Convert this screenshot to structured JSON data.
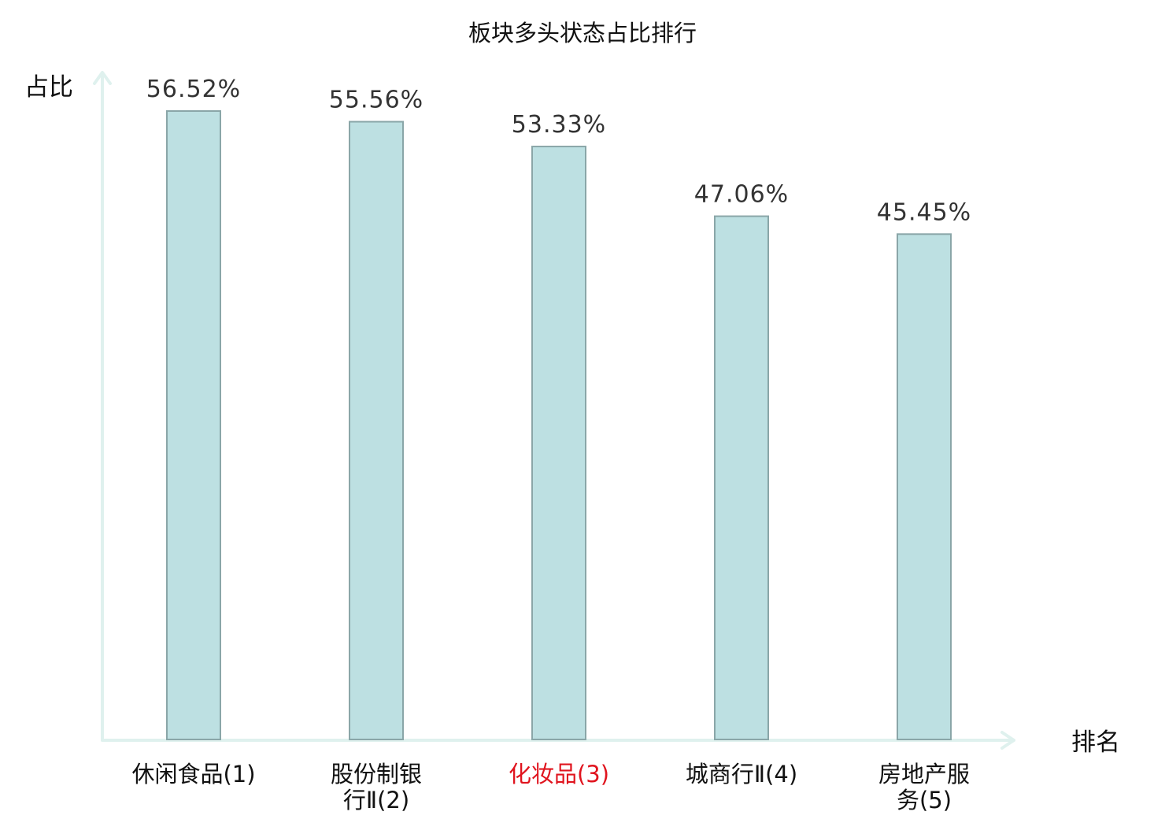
{
  "chart_data": {
    "type": "bar",
    "title": "板块多头状态占比排行",
    "ylabel": "占比",
    "xlabel": "排名",
    "categories": [
      [
        "休闲食品(1)"
      ],
      [
        "股份制银",
        "行Ⅱ(2)"
      ],
      [
        "化妆品(3)"
      ],
      [
        "城商行Ⅱ(4)"
      ],
      [
        "房地产服",
        "务(5)"
      ]
    ],
    "values": [
      56.52,
      55.56,
      53.33,
      47.06,
      45.45
    ],
    "value_labels": [
      "56.52%",
      "55.56%",
      "53.33%",
      "47.06%",
      "45.45%"
    ],
    "highlight_index": 2,
    "highlight_color": "#e0141e",
    "bar_color": "#bde0e2",
    "bar_edge_color": "#8aa6a8",
    "axis_color": "#dff1ee",
    "ylim": [
      0,
      56.52
    ],
    "grid": false,
    "legend": "none"
  }
}
